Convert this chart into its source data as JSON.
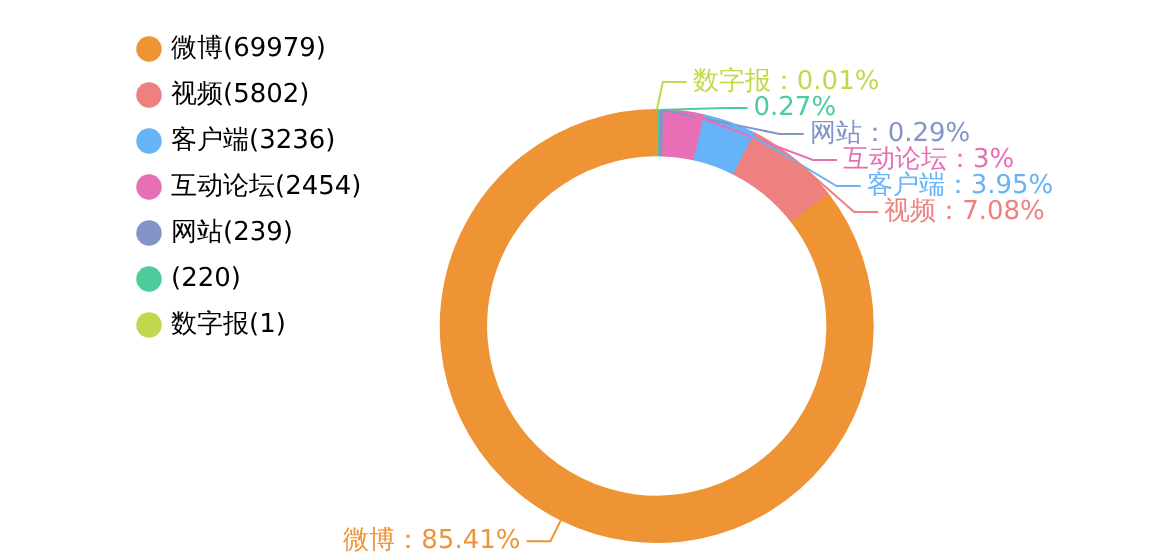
{
  "chart_data": {
    "type": "donut",
    "categories": [
      "微博(69979)",
      "视频(5802)",
      "客户端(3236)",
      "互动论坛(2454)",
      "网站(239)",
      "(220)",
      "数字报(1)"
    ],
    "values": [
      85.41,
      7.08,
      3.95,
      3,
      0.29,
      0.27,
      0.01
    ],
    "colors": [
      "#ee9435",
      "#ee8080",
      "#66b3f7",
      "#e86fb6",
      "#8494c7",
      "#4dcc9b",
      "#c0d94c"
    ],
    "value_labels": [
      "微博：85.41%",
      "视频：7.08%",
      "客户端：3.95%",
      "互动论坛：3%",
      "网站：0.29%",
      "0.27%",
      "数字报：0.01%"
    ],
    "legend": "top left"
  }
}
